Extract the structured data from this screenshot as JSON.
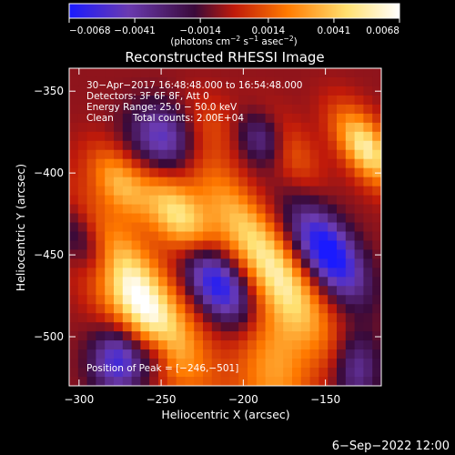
{
  "chart_data": {
    "type": "heatmap",
    "title": "Reconstructed RHESSI Image",
    "xlabel": "Heliocentric X (arcsec)",
    "ylabel": "Heliocentric Y (arcsec)",
    "xlim": [
      -306,
      -116
    ],
    "ylim": [
      -530,
      -336
    ],
    "x_ticks": [
      -300,
      -250,
      -200,
      -150
    ],
    "x_tick_labels": [
      "−300",
      "−250",
      "−200",
      "−150"
    ],
    "y_ticks": [
      -350,
      -400,
      -450,
      -500
    ],
    "y_tick_labels": [
      "−350",
      "−400",
      "−450",
      "−500"
    ],
    "colorbar": {
      "range": [
        -0.0068,
        0.0068
      ],
      "ticks": [
        -0.0068,
        -0.0041,
        -0.0014,
        0.0014,
        0.0041,
        0.0068
      ],
      "tick_labels": [
        "−0.0068",
        "−0.0041",
        "−0.0014",
        "0.0014",
        "0.0041",
        "0.0068"
      ],
      "unit_prefix": "(photons cm",
      "unit_exp1": "−2",
      "unit_mid1": " s",
      "unit_exp2": "−1",
      "unit_mid2": " asec",
      "unit_exp3": "−2",
      "unit_suffix": ")"
    },
    "colors": {
      "neg_max": "#1a1aff",
      "neg_mid": "#6a3ab0",
      "zero": "#3a0a3a",
      "pos_low": "#c01a0a",
      "pos_mid": "#ff7a00",
      "pos_high": "#ffe070",
      "pos_max": "#ffffff"
    },
    "peak": [
      -246,
      -501
    ],
    "grid": false
  },
  "info": {
    "time": "30−Apr−2017 16:48:48.000 to 16:54:48.000",
    "detectors": "Detectors: 3F 6F 8F, Att 0",
    "energy": "Energy Range: 25.0 − 50.0 keV",
    "clean_label": "Clean",
    "total_counts": "Total counts: 2.00E+04",
    "peak_text": "Position of Peak = [−246,−501]"
  },
  "footer": {
    "date": "6−Sep−2022 12:00"
  }
}
